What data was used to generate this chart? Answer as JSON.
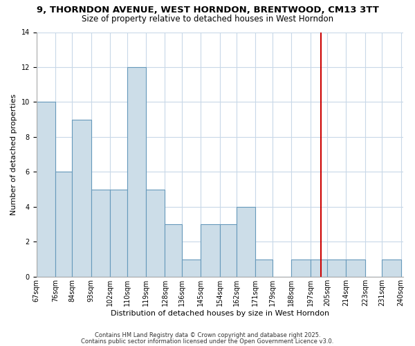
{
  "title": "9, THORNDON AVENUE, WEST HORNDON, BRENTWOOD, CM13 3TT",
  "subtitle": "Size of property relative to detached houses in West Horndon",
  "xlabel": "Distribution of detached houses by size in West Horndon",
  "ylabel": "Number of detached properties",
  "bin_labels": [
    "67sqm",
    "76sqm",
    "84sqm",
    "93sqm",
    "102sqm",
    "110sqm",
    "119sqm",
    "128sqm",
    "136sqm",
    "145sqm",
    "154sqm",
    "162sqm",
    "171sqm",
    "179sqm",
    "188sqm",
    "197sqm",
    "205sqm",
    "214sqm",
    "223sqm",
    "231sqm",
    "240sqm"
  ],
  "bin_edges": [
    67,
    76,
    84,
    93,
    102,
    110,
    119,
    128,
    136,
    145,
    154,
    162,
    171,
    179,
    188,
    197,
    205,
    214,
    223,
    231,
    240
  ],
  "bin_counts": [
    10,
    6,
    9,
    5,
    5,
    12,
    5,
    3,
    1,
    3,
    3,
    4,
    1,
    0,
    1,
    1,
    1,
    1,
    0,
    1
  ],
  "bar_color": "#ccdde8",
  "bar_edge_color": "#6699bb",
  "vline_x": 202,
  "vline_color": "#cc0000",
  "annotation_box_color": "#cc0000",
  "ylim": [
    0,
    14
  ],
  "yticks": [
    0,
    2,
    4,
    6,
    8,
    10,
    12,
    14
  ],
  "footnote1": "Contains HM Land Registry data © Crown copyright and database right 2025.",
  "footnote2": "Contains public sector information licensed under the Open Government Licence v3.0.",
  "bg_color": "#ffffff",
  "grid_color": "#c8d8e8",
  "title_fontsize": 9.5,
  "subtitle_fontsize": 8.5,
  "axis_label_fontsize": 8,
  "tick_fontsize": 7,
  "annotation_fontsize": 7.5,
  "footnote_fontsize": 6
}
